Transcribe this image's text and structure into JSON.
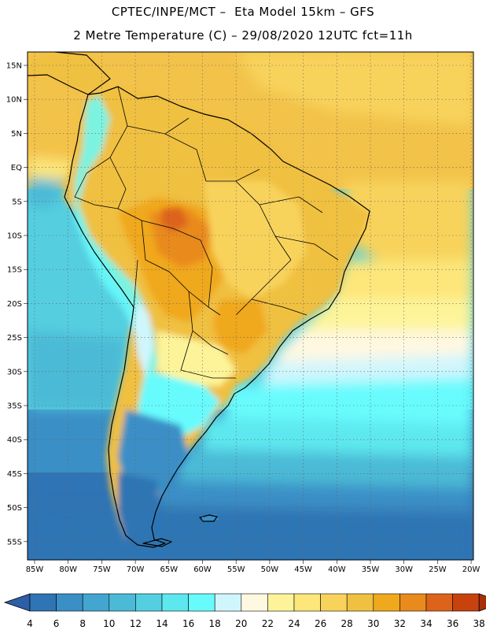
{
  "title_line1": "CPTEC/INPE/MCT –  Eta Model 15km – GFS",
  "title_line2": "2 Metre Temperature (C) – 29/08/2020 12UTC fct=11h",
  "lat_labels": [
    "15N",
    "10N",
    "5N",
    "EQ",
    "5S",
    "10S",
    "15S",
    "20S",
    "25S",
    "30S",
    "35S",
    "40S",
    "45S",
    "50S",
    "55S"
  ],
  "lon_labels": [
    "85W",
    "80W",
    "75W",
    "70W",
    "65W",
    "60W",
    "55W",
    "50W",
    "45W",
    "40W",
    "35W",
    "30W",
    "25W",
    "20W"
  ],
  "colorbar": {
    "labels": [
      "4",
      "6",
      "8",
      "10",
      "12",
      "14",
      "16",
      "18",
      "20",
      "22",
      "24",
      "26",
      "28",
      "30",
      "32",
      "34",
      "36",
      "38"
    ],
    "colors": [
      "#2d5ea6",
      "#2f74b4",
      "#3a8fc6",
      "#42a6d0",
      "#4bbad6",
      "#54cfe0",
      "#5de8ef",
      "#67fbfd",
      "#d0f6fd",
      "#fff8e1",
      "#fdf49a",
      "#fde67a",
      "#f8d35b",
      "#f0c040",
      "#f0a81c",
      "#e98a1d",
      "#de631a",
      "#c8420e",
      "#a72f08"
    ]
  }
}
